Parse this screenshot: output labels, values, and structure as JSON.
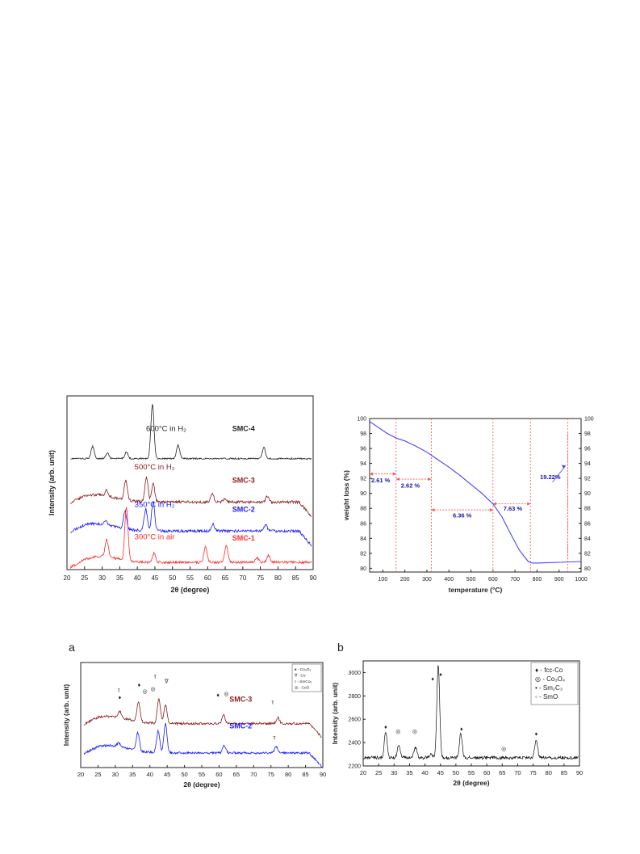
{
  "figures": {
    "a_label": "a",
    "b_label": "b"
  },
  "colors": {
    "smc1": "#ff2a2a",
    "smc2": "#1a1aff",
    "smc3": "#8b1a1a",
    "smc4": "#222222",
    "tga_curve": "#4444ff",
    "tga_guides": "#ff4d4d",
    "tga_labels": "#1a1aa6"
  },
  "chart_data": [
    {
      "id": "xrd_top_left",
      "type": "line",
      "title": "",
      "xlabel": "2θ (degree)",
      "ylabel": "Intensity (arb. unit)",
      "xlim": [
        20,
        90
      ],
      "xticks": [
        20,
        25,
        30,
        35,
        40,
        45,
        50,
        55,
        60,
        65,
        70,
        75,
        80,
        85,
        90
      ],
      "yticks_shown": false,
      "series": [
        {
          "name": "SMC-4",
          "annotation": "600°C in H₂",
          "base": 8.6,
          "peaks": [
            [
              27.3,
              1.0
            ],
            [
              31.5,
              0.45
            ],
            [
              36.9,
              0.55
            ],
            [
              44.3,
              4.5
            ],
            [
              51.6,
              1.1
            ],
            [
              76.0,
              0.9
            ]
          ]
        },
        {
          "name": "SMC-3",
          "annotation": "500°C in H₂",
          "base": 5.0,
          "peaks": [
            [
              31.3,
              0.5
            ],
            [
              36.7,
              1.6
            ],
            [
              42.6,
              2.0
            ],
            [
              44.5,
              1.5
            ],
            [
              61.3,
              0.7
            ],
            [
              65.0,
              0.3
            ],
            [
              77.0,
              0.5
            ]
          ]
        },
        {
          "name": "SMC-2",
          "annotation": "350°C in H₂",
          "base": 2.6,
          "peaks": [
            [
              31.0,
              0.3
            ],
            [
              36.5,
              1.5
            ],
            [
              42.4,
              1.8
            ],
            [
              44.5,
              2.4
            ],
            [
              61.5,
              0.6
            ],
            [
              76.5,
              0.5
            ]
          ]
        },
        {
          "name": "SMC-1",
          "annotation": "300°C in air",
          "base": 0.0,
          "peaks": [
            [
              31.3,
              1.4
            ],
            [
              36.9,
              4.5
            ],
            [
              44.8,
              0.8
            ],
            [
              59.4,
              1.3
            ],
            [
              65.3,
              1.4
            ],
            [
              74.0,
              0.4
            ],
            [
              77.3,
              0.6
            ]
          ]
        }
      ]
    },
    {
      "id": "tga_top_right",
      "type": "line",
      "title": "",
      "xlabel": "temperature (°C)",
      "ylabel": "weight loss (%)",
      "xlim": [
        40,
        1000
      ],
      "ylim": [
        79.5,
        100
      ],
      "xticks": [
        100,
        200,
        300,
        400,
        500,
        600,
        700,
        800,
        900,
        1000
      ],
      "yticks": [
        80,
        82,
        84,
        86,
        88,
        90,
        92,
        94,
        96,
        98,
        100
      ],
      "series": [
        {
          "name": "",
          "x": [
            40,
            80,
            120,
            160,
            200,
            250,
            300,
            350,
            400,
            450,
            500,
            550,
            600,
            640,
            680,
            720,
            760,
            780,
            800,
            850,
            900,
            950,
            1000
          ],
          "y": [
            99.6,
            98.8,
            98.0,
            97.4,
            97.0,
            96.3,
            95.5,
            94.5,
            93.5,
            92.4,
            91.2,
            90.0,
            88.6,
            86.9,
            84.6,
            82.4,
            80.9,
            80.7,
            80.7,
            80.75,
            80.8,
            80.85,
            80.9
          ]
        }
      ],
      "guides_x": [
        160,
        320,
        600,
        770,
        940
      ],
      "annotations": [
        {
          "text": "2.61 %",
          "x": 90,
          "y": 91.5
        },
        {
          "text": "2.62 %",
          "x": 225,
          "y": 90.8
        },
        {
          "text": "6.36 %",
          "x": 460,
          "y": 86.8
        },
        {
          "text": "7.63 %",
          "x": 690,
          "y": 87.7
        },
        {
          "text": "19.22%",
          "x": 860,
          "y": 91.9
        }
      ]
    },
    {
      "id": "xrd_bottom_left",
      "type": "line",
      "title": "",
      "xlabel": "2θ (degree)",
      "ylabel": "Intensity (arb. unit)",
      "xlim": [
        20,
        90
      ],
      "xticks": [
        20,
        25,
        30,
        35,
        40,
        45,
        50,
        55,
        60,
        65,
        70,
        75,
        80,
        85,
        90
      ],
      "legend": [
        "♦ - Co₃O₄",
        "∇ - Co",
        "τ - SmCo₅",
        "◎ - CoO"
      ],
      "legend_position": "top-right",
      "series": [
        {
          "name": "SMC-3",
          "base": 4.6,
          "peaks": [
            [
              31.3,
              0.5
            ],
            [
              36.7,
              1.6
            ],
            [
              42.6,
              2.0
            ],
            [
              44.5,
              1.5
            ],
            [
              61.3,
              0.7
            ],
            [
              77.0,
              0.5
            ]
          ]
        },
        {
          "name": "SMC-2",
          "base": 2.2,
          "peaks": [
            [
              31.0,
              0.3
            ],
            [
              36.5,
              1.5
            ],
            [
              42.4,
              1.8
            ],
            [
              44.5,
              2.4
            ],
            [
              61.5,
              0.6
            ],
            [
              76.5,
              0.5
            ]
          ]
        }
      ],
      "markers": [
        {
          "text": "♦",
          "x": 31.3,
          "y": 6.6
        },
        {
          "text": "τ",
          "x": 31.0,
          "y": 7.2
        },
        {
          "text": "♦",
          "x": 36.9,
          "y": 7.6
        },
        {
          "text": "◎",
          "x": 38.6,
          "y": 7.1
        },
        {
          "text": "τ",
          "x": 41.5,
          "y": 8.3
        },
        {
          "text": "◎",
          "x": 40.9,
          "y": 7.3
        },
        {
          "text": "∇",
          "x": 44.8,
          "y": 7.9
        },
        {
          "text": "♦",
          "x": 59.7,
          "y": 6.8
        },
        {
          "text": "◎",
          "x": 62.1,
          "y": 6.9
        },
        {
          "text": "τ",
          "x": 75.5,
          "y": 6.2
        },
        {
          "text": "τ",
          "x": 76.0,
          "y": 3.3
        }
      ]
    },
    {
      "id": "xrd_bottom_right",
      "type": "line",
      "title": "",
      "xlabel": "2θ (degree)",
      "ylabel": "Intensity (arb. unit)",
      "xlim": [
        20,
        90
      ],
      "ylim": [
        2200,
        3100
      ],
      "xticks": [
        20,
        25,
        30,
        35,
        40,
        45,
        50,
        55,
        60,
        65,
        70,
        75,
        80,
        85,
        90
      ],
      "yticks": [
        2200,
        2400,
        2600,
        2800,
        3000
      ],
      "legend": [
        "♦ - fcc-Co",
        "◎ - Co₃O₄",
        "• - Sm₂C₃",
        "◦ - SmO"
      ],
      "legend_position": "top-right",
      "series": [
        {
          "name": "",
          "base": 2270,
          "peaks": [
            [
              27.3,
              220
            ],
            [
              31.5,
              110
            ],
            [
              36.9,
              90
            ],
            [
              44.3,
              800
            ],
            [
              51.6,
              210
            ],
            [
              76.0,
              160
            ],
            [
              42.0,
              30
            ]
          ]
        }
      ],
      "markers": [
        {
          "text": "♦",
          "x": 27.3,
          "y": 2520
        },
        {
          "text": "◎",
          "x": 31.3,
          "y": 2480
        },
        {
          "text": "◎",
          "x": 36.7,
          "y": 2480
        },
        {
          "text": "♦",
          "x": 42.5,
          "y": 2930
        },
        {
          "text": "♦",
          "x": 45.1,
          "y": 2970
        },
        {
          "text": "♦",
          "x": 51.8,
          "y": 2500
        },
        {
          "text": "◎",
          "x": 65.5,
          "y": 2330
        },
        {
          "text": "♦",
          "x": 76.0,
          "y": 2460
        }
      ]
    }
  ]
}
